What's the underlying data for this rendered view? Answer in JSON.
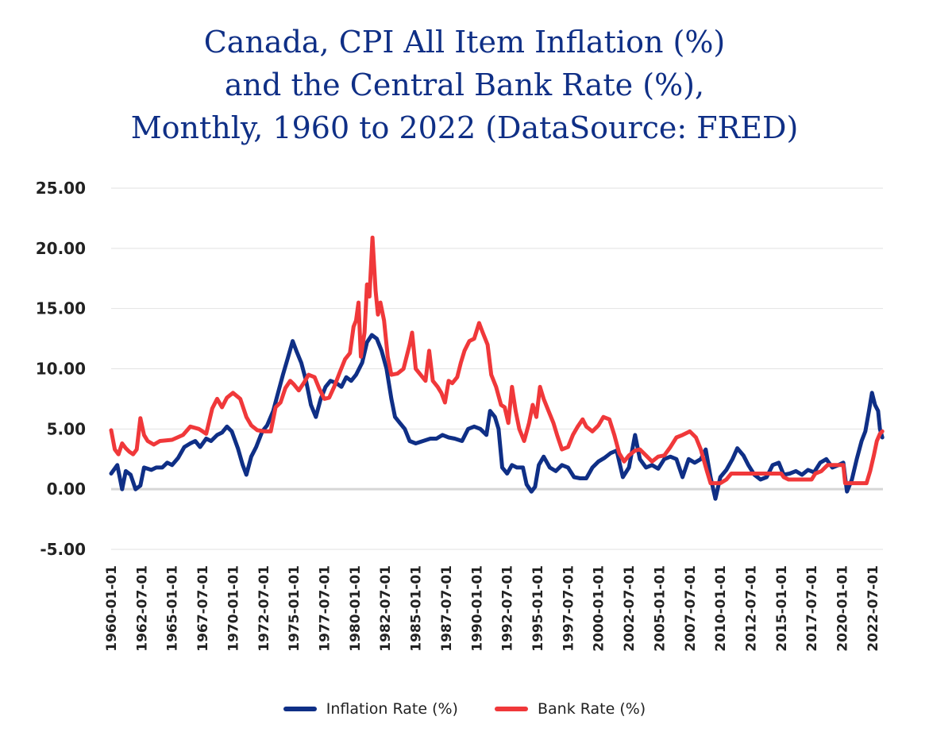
{
  "chart_data": {
    "type": "line",
    "title_lines": [
      "Canada, CPI All Item Inflation (%)",
      "and the Central Bank Rate (%),",
      "Monthly, 1960 to 2022 (DataSource: FRED)"
    ],
    "xlabel": "",
    "ylabel": "",
    "ylim": [
      -5,
      25
    ],
    "yticks": [
      "25.00",
      "20.00",
      "15.00",
      "10.00",
      "5.00",
      "0.00",
      "-5.00"
    ],
    "xticks": [
      "1960-01-01",
      "1962-07-01",
      "1965-01-01",
      "1967-07-01",
      "1970-01-01",
      "1972-07-01",
      "1975-01-01",
      "1977-07-01",
      "1980-01-01",
      "1982-07-01",
      "1985-01-01",
      "1987-07-01",
      "1990-01-01",
      "1992-07-01",
      "1995-01-01",
      "1997-07-01",
      "2000-01-01",
      "2002-07-01",
      "2005-01-01",
      "2007-07-01",
      "2010-01-01",
      "2012-07-01",
      "2015-01-01",
      "2017-07-01",
      "2020-01-01",
      "2022-07-01"
    ],
    "grid": true,
    "legend_position": "bottom",
    "series": [
      {
        "name": "Inflation Rate (%)",
        "color": "#0f2f86",
        "points": [
          [
            1960.0,
            1.3
          ],
          [
            1960.5,
            2.0
          ],
          [
            1960.9,
            0.0
          ],
          [
            1961.2,
            1.5
          ],
          [
            1961.6,
            1.2
          ],
          [
            1962.0,
            0.0
          ],
          [
            1962.4,
            0.3
          ],
          [
            1962.7,
            1.8
          ],
          [
            1963.3,
            1.6
          ],
          [
            1963.7,
            1.8
          ],
          [
            1964.2,
            1.8
          ],
          [
            1964.6,
            2.2
          ],
          [
            1965.0,
            2.0
          ],
          [
            1965.5,
            2.6
          ],
          [
            1966.0,
            3.5
          ],
          [
            1966.5,
            3.8
          ],
          [
            1966.9,
            4.0
          ],
          [
            1967.3,
            3.5
          ],
          [
            1967.8,
            4.2
          ],
          [
            1968.2,
            4.0
          ],
          [
            1968.7,
            4.5
          ],
          [
            1969.1,
            4.7
          ],
          [
            1969.5,
            5.2
          ],
          [
            1969.9,
            4.8
          ],
          [
            1970.4,
            3.4
          ],
          [
            1970.8,
            2.0
          ],
          [
            1971.1,
            1.2
          ],
          [
            1971.5,
            2.7
          ],
          [
            1971.9,
            3.5
          ],
          [
            1972.4,
            4.8
          ],
          [
            1972.8,
            5.3
          ],
          [
            1973.3,
            6.5
          ],
          [
            1973.7,
            8.0
          ],
          [
            1974.1,
            9.5
          ],
          [
            1974.5,
            10.9
          ],
          [
            1974.9,
            12.3
          ],
          [
            1975.2,
            11.5
          ],
          [
            1975.6,
            10.5
          ],
          [
            1976.0,
            9.0
          ],
          [
            1976.4,
            7.0
          ],
          [
            1976.8,
            6.0
          ],
          [
            1977.2,
            7.5
          ],
          [
            1977.6,
            8.5
          ],
          [
            1978.0,
            9.0
          ],
          [
            1978.5,
            8.8
          ],
          [
            1978.9,
            8.5
          ],
          [
            1979.3,
            9.3
          ],
          [
            1979.7,
            9.0
          ],
          [
            1980.1,
            9.5
          ],
          [
            1980.6,
            10.5
          ],
          [
            1981.0,
            12.2
          ],
          [
            1981.4,
            12.8
          ],
          [
            1981.8,
            12.5
          ],
          [
            1982.2,
            11.5
          ],
          [
            1982.6,
            10.0
          ],
          [
            1983.0,
            7.5
          ],
          [
            1983.3,
            6.0
          ],
          [
            1983.7,
            5.5
          ],
          [
            1984.1,
            5.0
          ],
          [
            1984.5,
            4.0
          ],
          [
            1985.0,
            3.8
          ],
          [
            1985.6,
            4.0
          ],
          [
            1986.2,
            4.2
          ],
          [
            1986.7,
            4.2
          ],
          [
            1987.2,
            4.5
          ],
          [
            1987.7,
            4.3
          ],
          [
            1988.2,
            4.2
          ],
          [
            1988.8,
            4.0
          ],
          [
            1989.3,
            5.0
          ],
          [
            1989.8,
            5.2
          ],
          [
            1990.3,
            5.0
          ],
          [
            1990.8,
            4.5
          ],
          [
            1991.1,
            6.5
          ],
          [
            1991.5,
            6.0
          ],
          [
            1991.8,
            5.0
          ],
          [
            1992.1,
            1.8
          ],
          [
            1992.5,
            1.3
          ],
          [
            1992.9,
            2.0
          ],
          [
            1993.3,
            1.8
          ],
          [
            1993.8,
            1.8
          ],
          [
            1994.1,
            0.4
          ],
          [
            1994.5,
            -0.2
          ],
          [
            1994.8,
            0.2
          ],
          [
            1995.1,
            2.0
          ],
          [
            1995.5,
            2.7
          ],
          [
            1996.0,
            1.8
          ],
          [
            1996.5,
            1.5
          ],
          [
            1997.0,
            2.0
          ],
          [
            1997.5,
            1.8
          ],
          [
            1998.0,
            1.0
          ],
          [
            1998.5,
            0.9
          ],
          [
            1999.0,
            0.9
          ],
          [
            1999.5,
            1.8
          ],
          [
            2000.0,
            2.3
          ],
          [
            2000.5,
            2.6
          ],
          [
            2001.0,
            3.0
          ],
          [
            2001.5,
            3.2
          ],
          [
            2002.0,
            1.0
          ],
          [
            2002.5,
            1.8
          ],
          [
            2003.0,
            4.5
          ],
          [
            2003.4,
            2.5
          ],
          [
            2003.9,
            1.8
          ],
          [
            2004.4,
            2.0
          ],
          [
            2004.9,
            1.7
          ],
          [
            2005.4,
            2.5
          ],
          [
            2005.9,
            2.7
          ],
          [
            2006.4,
            2.5
          ],
          [
            2006.9,
            1.0
          ],
          [
            2007.4,
            2.5
          ],
          [
            2007.9,
            2.2
          ],
          [
            2008.4,
            2.5
          ],
          [
            2008.8,
            3.3
          ],
          [
            2009.2,
            1.0
          ],
          [
            2009.6,
            -0.8
          ],
          [
            2010.0,
            1.0
          ],
          [
            2010.5,
            1.6
          ],
          [
            2011.0,
            2.5
          ],
          [
            2011.4,
            3.4
          ],
          [
            2011.9,
            2.8
          ],
          [
            2012.3,
            2.0
          ],
          [
            2012.8,
            1.2
          ],
          [
            2013.3,
            0.8
          ],
          [
            2013.8,
            1.0
          ],
          [
            2014.3,
            2.0
          ],
          [
            2014.8,
            2.2
          ],
          [
            2015.2,
            1.2
          ],
          [
            2015.7,
            1.3
          ],
          [
            2016.2,
            1.5
          ],
          [
            2016.7,
            1.2
          ],
          [
            2017.2,
            1.6
          ],
          [
            2017.7,
            1.4
          ],
          [
            2018.2,
            2.2
          ],
          [
            2018.7,
            2.5
          ],
          [
            2019.2,
            1.8
          ],
          [
            2019.7,
            2.0
          ],
          [
            2020.1,
            2.2
          ],
          [
            2020.4,
            -0.2
          ],
          [
            2020.8,
            0.8
          ],
          [
            2021.2,
            2.5
          ],
          [
            2021.6,
            4.0
          ],
          [
            2021.9,
            4.8
          ],
          [
            2022.2,
            6.5
          ],
          [
            2022.45,
            8.0
          ],
          [
            2022.7,
            7.0
          ],
          [
            2022.95,
            6.5
          ],
          [
            2023.1,
            5.0
          ],
          [
            2023.3,
            4.3
          ]
        ]
      },
      {
        "name": "Bank Rate (%)",
        "color": "#f0383a",
        "points": [
          [
            1960.0,
            4.9
          ],
          [
            1960.3,
            3.3
          ],
          [
            1960.6,
            2.9
          ],
          [
            1960.9,
            3.8
          ],
          [
            1961.2,
            3.4
          ],
          [
            1961.5,
            3.1
          ],
          [
            1961.8,
            2.9
          ],
          [
            1962.1,
            3.3
          ],
          [
            1962.4,
            5.9
          ],
          [
            1962.7,
            4.5
          ],
          [
            1963.0,
            4.0
          ],
          [
            1963.5,
            3.7
          ],
          [
            1964.0,
            4.0
          ],
          [
            1965.0,
            4.1
          ],
          [
            1965.9,
            4.5
          ],
          [
            1966.5,
            5.2
          ],
          [
            1967.2,
            5.0
          ],
          [
            1967.8,
            4.6
          ],
          [
            1968.3,
            6.7
          ],
          [
            1968.7,
            7.5
          ],
          [
            1969.1,
            6.8
          ],
          [
            1969.5,
            7.6
          ],
          [
            1970.0,
            8.0
          ],
          [
            1970.6,
            7.5
          ],
          [
            1971.1,
            6.0
          ],
          [
            1971.5,
            5.3
          ],
          [
            1972.0,
            4.9
          ],
          [
            1972.6,
            4.8
          ],
          [
            1973.1,
            4.8
          ],
          [
            1973.5,
            6.8
          ],
          [
            1973.9,
            7.2
          ],
          [
            1974.3,
            8.4
          ],
          [
            1974.7,
            9.0
          ],
          [
            1975.0,
            8.7
          ],
          [
            1975.4,
            8.2
          ],
          [
            1975.8,
            8.8
          ],
          [
            1976.2,
            9.5
          ],
          [
            1976.7,
            9.3
          ],
          [
            1977.1,
            8.3
          ],
          [
            1977.5,
            7.5
          ],
          [
            1977.9,
            7.6
          ],
          [
            1978.3,
            8.5
          ],
          [
            1978.8,
            9.8
          ],
          [
            1979.2,
            10.8
          ],
          [
            1979.6,
            11.3
          ],
          [
            1979.9,
            13.5
          ],
          [
            1980.1,
            14.0
          ],
          [
            1980.3,
            15.5
          ],
          [
            1980.5,
            11.0
          ],
          [
            1980.8,
            13.0
          ],
          [
            1981.0,
            17.0
          ],
          [
            1981.2,
            16.0
          ],
          [
            1981.45,
            20.9
          ],
          [
            1981.7,
            16.5
          ],
          [
            1981.9,
            14.5
          ],
          [
            1982.1,
            15.5
          ],
          [
            1982.4,
            14.0
          ],
          [
            1982.7,
            11.0
          ],
          [
            1983.0,
            9.5
          ],
          [
            1983.5,
            9.6
          ],
          [
            1984.0,
            10.0
          ],
          [
            1984.5,
            12.0
          ],
          [
            1984.7,
            13.0
          ],
          [
            1985.0,
            10.0
          ],
          [
            1985.4,
            9.5
          ],
          [
            1985.8,
            9.0
          ],
          [
            1986.1,
            11.5
          ],
          [
            1986.4,
            9.0
          ],
          [
            1986.8,
            8.5
          ],
          [
            1987.1,
            8.0
          ],
          [
            1987.4,
            7.2
          ],
          [
            1987.7,
            9.0
          ],
          [
            1988.0,
            8.8
          ],
          [
            1988.4,
            9.3
          ],
          [
            1988.7,
            10.5
          ],
          [
            1989.0,
            11.5
          ],
          [
            1989.4,
            12.3
          ],
          [
            1989.8,
            12.5
          ],
          [
            1990.2,
            13.8
          ],
          [
            1990.5,
            13.0
          ],
          [
            1990.9,
            12.0
          ],
          [
            1991.2,
            9.5
          ],
          [
            1991.6,
            8.5
          ],
          [
            1992.0,
            7.0
          ],
          [
            1992.3,
            6.8
          ],
          [
            1992.6,
            5.5
          ],
          [
            1992.9,
            8.5
          ],
          [
            1993.2,
            6.5
          ],
          [
            1993.5,
            5.0
          ],
          [
            1993.9,
            4.0
          ],
          [
            1994.3,
            5.5
          ],
          [
            1994.6,
            7.0
          ],
          [
            1994.9,
            6.0
          ],
          [
            1995.2,
            8.5
          ],
          [
            1995.5,
            7.5
          ],
          [
            1995.9,
            6.5
          ],
          [
            1996.3,
            5.5
          ],
          [
            1996.6,
            4.5
          ],
          [
            1997.0,
            3.3
          ],
          [
            1997.5,
            3.5
          ],
          [
            1997.9,
            4.5
          ],
          [
            1998.3,
            5.2
          ],
          [
            1998.7,
            5.8
          ],
          [
            1999.0,
            5.2
          ],
          [
            1999.5,
            4.8
          ],
          [
            2000.0,
            5.3
          ],
          [
            2000.4,
            6.0
          ],
          [
            2000.9,
            5.8
          ],
          [
            2001.3,
            4.5
          ],
          [
            2001.7,
            3.0
          ],
          [
            2002.1,
            2.3
          ],
          [
            2002.5,
            2.8
          ],
          [
            2003.0,
            3.2
          ],
          [
            2003.4,
            3.3
          ],
          [
            2003.9,
            2.8
          ],
          [
            2004.4,
            2.3
          ],
          [
            2004.9,
            2.7
          ],
          [
            2005.4,
            2.8
          ],
          [
            2005.9,
            3.5
          ],
          [
            2006.4,
            4.3
          ],
          [
            2006.9,
            4.5
          ],
          [
            2007.5,
            4.8
          ],
          [
            2008.0,
            4.3
          ],
          [
            2008.4,
            3.3
          ],
          [
            2008.9,
            1.5
          ],
          [
            2009.2,
            0.5
          ],
          [
            2010.0,
            0.5
          ],
          [
            2010.5,
            0.8
          ],
          [
            2010.9,
            1.3
          ],
          [
            2015.0,
            1.3
          ],
          [
            2015.2,
            1.0
          ],
          [
            2015.6,
            0.8
          ],
          [
            2017.5,
            0.8
          ],
          [
            2017.8,
            1.3
          ],
          [
            2018.3,
            1.5
          ],
          [
            2018.8,
            2.0
          ],
          [
            2020.1,
            2.0
          ],
          [
            2020.25,
            0.5
          ],
          [
            2022.0,
            0.5
          ],
          [
            2022.3,
            1.5
          ],
          [
            2022.6,
            2.8
          ],
          [
            2022.85,
            4.0
          ],
          [
            2023.1,
            4.6
          ],
          [
            2023.3,
            4.8
          ]
        ]
      }
    ]
  }
}
